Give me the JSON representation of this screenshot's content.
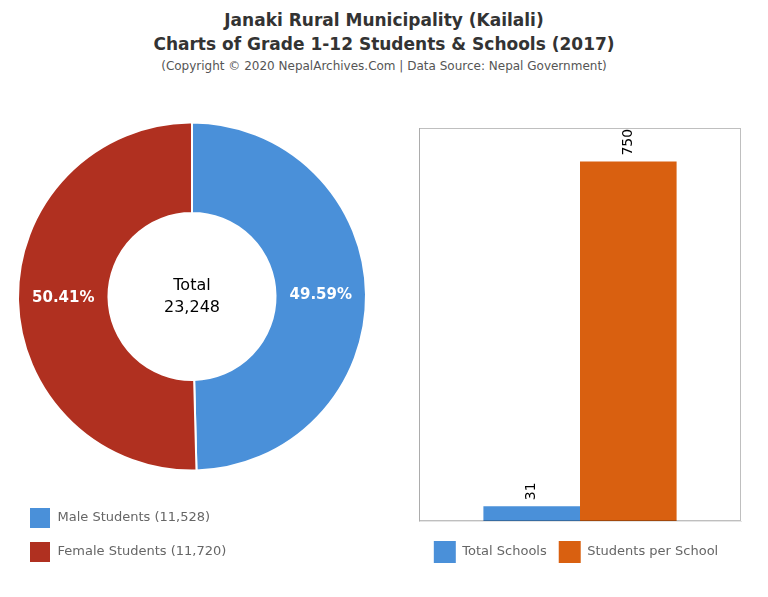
{
  "title": [
    "Janaki Rural Municipality (Kailali)",
    "Charts of Grade 1-12 Students & Schools (2017)"
  ],
  "subtitle": "(Copyright © 2020 NepalArchives.Com | Data Source: Nepal Government)",
  "chart_data": [
    {
      "type": "doughnut",
      "categories": [
        "Male Students (11,528)",
        "Female Students (11,720)"
      ],
      "values": [
        49.59,
        50.41
      ],
      "value_labels": [
        "49.59%",
        "50.41%"
      ],
      "colors": [
        "#4a90d9",
        "#b03020"
      ],
      "data_labels": true,
      "annotations": [
        "Total",
        "23,248"
      ],
      "legend": "lower left"
    },
    {
      "type": "bar",
      "categories": [
        null
      ],
      "series": [
        {
          "name": "Total Schools",
          "color": "#4a90d9",
          "values": [
            31
          ]
        },
        {
          "name": "Students per School",
          "color": "#d96010",
          "values": [
            750
          ]
        }
      ],
      "ylim": [
        0,
        820
      ],
      "tick_labels": false,
      "grid": false,
      "data_labels": true,
      "legend": "bottom"
    }
  ]
}
